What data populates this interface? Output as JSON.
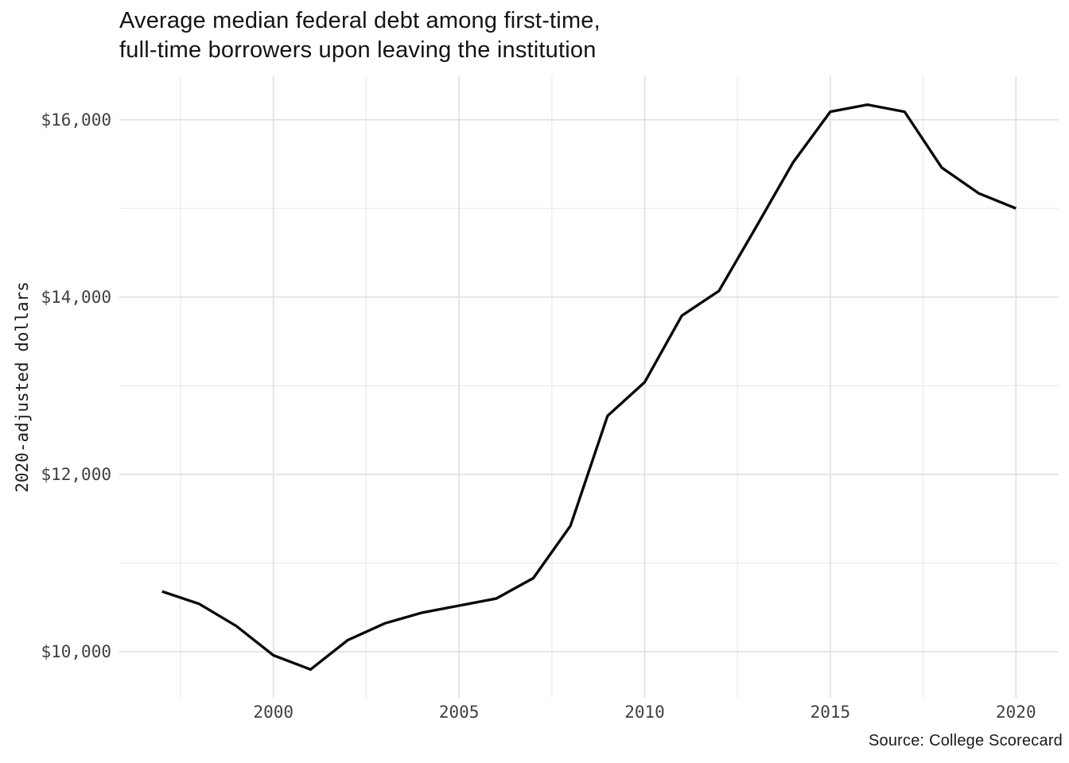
{
  "header": {
    "title": "Average median federal debt among first-time,\nfull-time borrowers upon leaving the institution"
  },
  "caption": {
    "text": "Source: College Scorecard"
  },
  "chart_data": {
    "type": "line",
    "title": "Average median federal debt among first-time,\nfull-time borrowers upon leaving the institution",
    "xlabel": "",
    "ylabel": "2020-adjusted dollars",
    "caption": "Source: College Scorecard",
    "x": [
      1997,
      1998,
      1999,
      2000,
      2001,
      2002,
      2003,
      2004,
      2005,
      2006,
      2007,
      2008,
      2009,
      2010,
      2011,
      2012,
      2013,
      2014,
      2015,
      2016,
      2017,
      2018,
      2019,
      2020
    ],
    "series": [
      {
        "name": "Average median federal debt (2020-adjusted dollars)",
        "values": [
          10680,
          10540,
          10290,
          9960,
          9800,
          10130,
          10320,
          10440,
          10520,
          10600,
          10830,
          11420,
          12660,
          13040,
          13790,
          14070,
          14790,
          15520,
          16090,
          16170,
          16090,
          15460,
          15170,
          15000
        ]
      }
    ],
    "xlim": [
      1995.85,
      2021.15
    ],
    "ylim": [
      9480,
      16490
    ],
    "x_major_ticks": [
      2000,
      2005,
      2010,
      2015,
      2020
    ],
    "x_tick_labels": [
      "2000",
      "2005",
      "2010",
      "2015",
      "2020"
    ],
    "x_minor_ticks": [
      1997.5,
      2002.5,
      2007.5,
      2012.5,
      2017.5
    ],
    "y_major_ticks": [
      10000,
      12000,
      14000,
      16000
    ],
    "y_tick_labels": [
      "$10,000",
      "$12,000",
      "$14,000",
      "$16,000"
    ],
    "y_minor_ticks": [
      11000,
      13000,
      15000
    ],
    "grid": "on",
    "legend": "none",
    "colors": {
      "line": "#0a0a0a",
      "grid_major": "#e2e2e2",
      "grid_minor": "#ececec",
      "title_text": "#141414",
      "axis_text": "#404040",
      "background": "#ffffff"
    }
  }
}
